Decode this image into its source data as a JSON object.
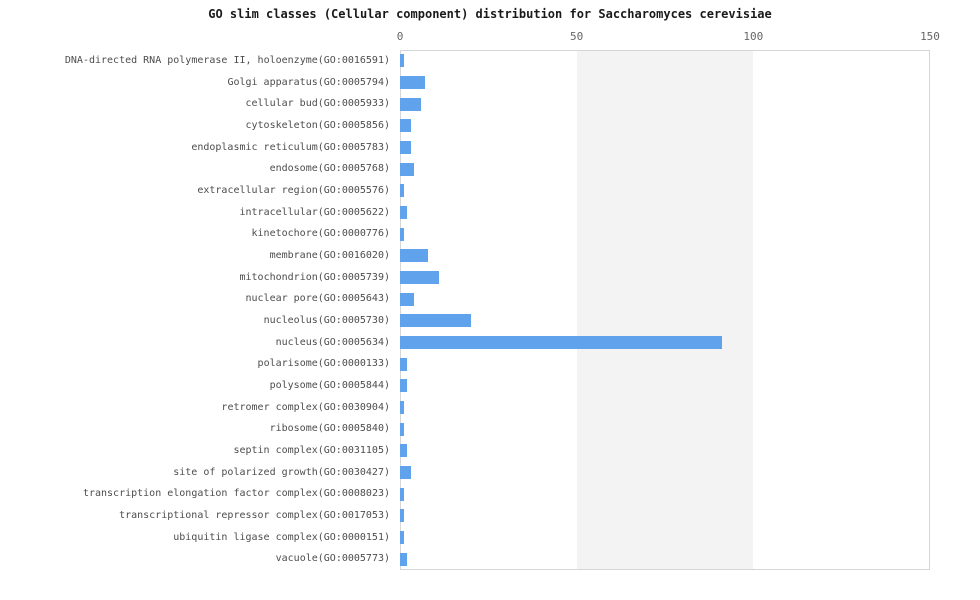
{
  "title": "GO slim classes (Cellular component) distribution for Saccharomyces cerevisiae",
  "colors": {
    "background": "#ffffff",
    "bar": "#60a3ec",
    "stripe_band": "#f3f3f3",
    "plot_border": "#d6d6d6",
    "label_text": "#4d4d4d",
    "tick_text": "#666666",
    "title_text": "#1a1a1a"
  },
  "chart_data": {
    "type": "bar",
    "orientation": "horizontal",
    "title": "GO slim classes (Cellular component) distribution for Saccharomyces cerevisiae",
    "xlabel": "",
    "ylabel": "",
    "xlim": [
      0,
      150
    ],
    "xticks": [
      0,
      50,
      100,
      150
    ],
    "axis_position": "top",
    "grid": "off",
    "legend": "none",
    "background_bands": [
      {
        "from": 50,
        "to": 100,
        "color": "#f3f3f3"
      }
    ],
    "categories": [
      "DNA-directed RNA polymerase II, holoenzyme(GO:0016591)",
      "Golgi apparatus(GO:0005794)",
      "cellular bud(GO:0005933)",
      "cytoskeleton(GO:0005856)",
      "endoplasmic reticulum(GO:0005783)",
      "endosome(GO:0005768)",
      "extracellular region(GO:0005576)",
      "intracellular(GO:0005622)",
      "kinetochore(GO:0000776)",
      "membrane(GO:0016020)",
      "mitochondrion(GO:0005739)",
      "nuclear pore(GO:0005643)",
      "nucleolus(GO:0005730)",
      "nucleus(GO:0005634)",
      "polarisome(GO:0000133)",
      "polysome(GO:0005844)",
      "retromer complex(GO:0030904)",
      "ribosome(GO:0005840)",
      "septin complex(GO:0031105)",
      "site of polarized growth(GO:0030427)",
      "transcription elongation factor complex(GO:0008023)",
      "transcriptional repressor complex(GO:0017053)",
      "ubiquitin ligase complex(GO:0000151)",
      "vacuole(GO:0005773)"
    ],
    "values": [
      1,
      7,
      6,
      3,
      3,
      4,
      1,
      2,
      1,
      8,
      11,
      4,
      20,
      91,
      2,
      2,
      1,
      1,
      2,
      3,
      1,
      1,
      1,
      2
    ]
  }
}
